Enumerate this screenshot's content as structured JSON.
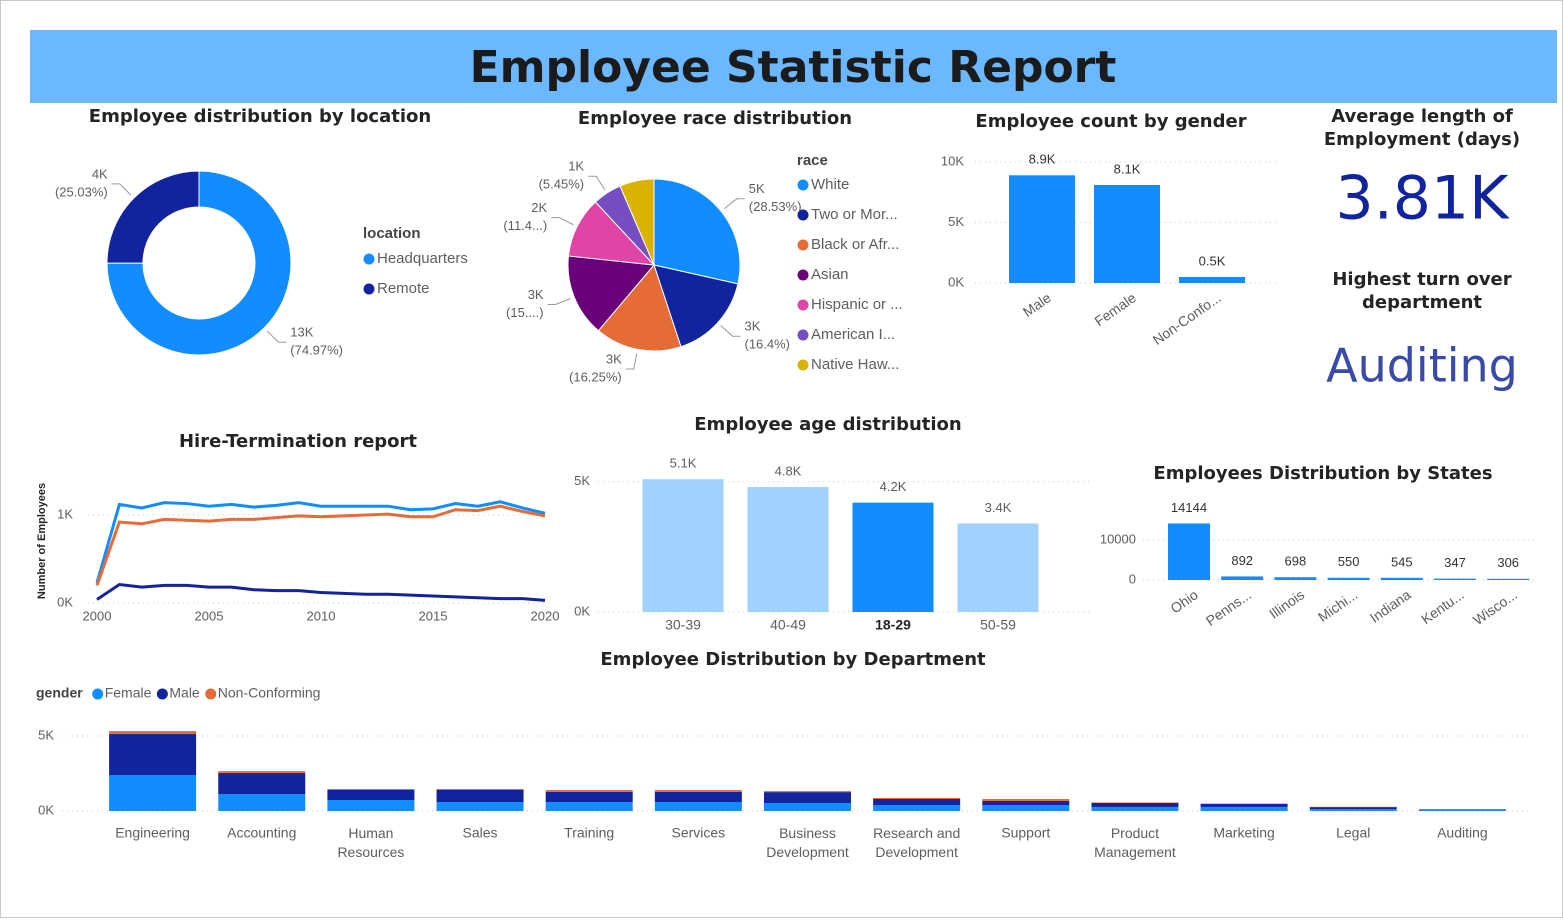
{
  "title": "Employee Statistic Report",
  "cards": [
    {
      "title": "Average length of Employment (days)",
      "value": "3.81K"
    },
    {
      "title": "Highest turn over department",
      "value": "Auditing"
    }
  ],
  "chart_data": [
    {
      "type": "donut",
      "title": "Employee distribution by location",
      "legend_title": "location",
      "categories": [
        "Headquarters",
        "Remote"
      ],
      "values": [
        74.97,
        25.03
      ],
      "count_labels": [
        "13K",
        "4K"
      ],
      "value_labels": [
        "(74.97%)",
        "(25.03%)"
      ],
      "colors": [
        "#118dff",
        "#12239e"
      ]
    },
    {
      "type": "pie",
      "title": "Employee race distribution",
      "legend_title": "race",
      "categories": [
        "White",
        "Two or Mor...",
        "Black or Afr...",
        "Asian",
        "Hispanic or ...",
        "American I...",
        "Native Haw..."
      ],
      "values": [
        28.53,
        16.4,
        16.25,
        15.5,
        11.4,
        5.45,
        6.47
      ],
      "count_labels": [
        "5K",
        "3K",
        "3K",
        "3K",
        "2K",
        "1K",
        null
      ],
      "value_labels": [
        "(28.53%)",
        "(16.4%)",
        "(16.25%)",
        "(15....)",
        "(11.4...)",
        "(5.45%)",
        null
      ],
      "colors": [
        "#118dff",
        "#12239e",
        "#e66c37",
        "#6b007b",
        "#e044a7",
        "#744ec2",
        "#d9b300"
      ]
    },
    {
      "type": "bar",
      "title": "Employee count by gender",
      "categories": [
        "Male",
        "Female",
        "Non-Confo..."
      ],
      "values": [
        8900,
        8100,
        500
      ],
      "value_labels": [
        "8.9K",
        "8.1K",
        "0.5K"
      ],
      "color": "#118dff",
      "ylim": [
        0,
        10000
      ],
      "yticks": [
        {
          "value": 0,
          "label": "0K"
        },
        {
          "value": 5000,
          "label": "5K"
        },
        {
          "value": 10000,
          "label": "10K"
        }
      ],
      "grid": true
    },
    {
      "type": "line",
      "title": "Hire-Termination report",
      "y_label": "Number of Employees",
      "x": [
        2000,
        2001,
        2002,
        2003,
        2004,
        2005,
        2006,
        2007,
        2008,
        2009,
        2010,
        2011,
        2012,
        2013,
        2014,
        2015,
        2016,
        2017,
        2018,
        2019,
        2020
      ],
      "series": [
        {
          "color": "#118dff",
          "values": [
            230,
            1120,
            1080,
            1140,
            1130,
            1100,
            1120,
            1090,
            1110,
            1140,
            1100,
            1100,
            1100,
            1100,
            1060,
            1070,
            1130,
            1100,
            1150,
            1080,
            1020
          ]
        },
        {
          "color": "#e66c37",
          "values": [
            200,
            920,
            900,
            950,
            940,
            930,
            950,
            950,
            970,
            990,
            980,
            990,
            1000,
            1010,
            980,
            980,
            1060,
            1050,
            1100,
            1040,
            990
          ]
        },
        {
          "color": "#12239e",
          "values": [
            40,
            210,
            180,
            200,
            200,
            180,
            180,
            150,
            140,
            140,
            120,
            110,
            100,
            100,
            90,
            80,
            70,
            60,
            50,
            50,
            30
          ]
        }
      ],
      "xlim": [
        2000,
        2020
      ],
      "xticks": [
        2000,
        2005,
        2010,
        2015,
        2020
      ],
      "ylim": [
        0,
        1500
      ],
      "yticks": [
        {
          "value": 0,
          "label": "0K"
        },
        {
          "value": 1000,
          "label": "1K"
        }
      ],
      "grid": true
    },
    {
      "type": "bar",
      "title": "Employee age distribution",
      "categories": [
        "30-39",
        "40-49",
        "18-29",
        "50-59"
      ],
      "values": [
        5100,
        4800,
        4200,
        3400
      ],
      "value_labels": [
        "5.1K",
        "4.8K",
        "4.2K",
        "3.4K"
      ],
      "colors": [
        "#a0d1ff",
        "#a0d1ff",
        "#118dff",
        "#a0d1ff"
      ],
      "label_weights": [
        "normal",
        "normal",
        "bold",
        "normal"
      ],
      "ylim": [
        0,
        5300
      ],
      "yticks": [
        {
          "value": 0,
          "label": "0K"
        },
        {
          "value": 5000,
          "label": "5K"
        }
      ],
      "grid": true
    },
    {
      "type": "bar",
      "title": "Employees Distribution by States",
      "categories": [
        "Ohio",
        "Penns...",
        "Illinois",
        "Michi...",
        "Indiana",
        "Kentu...",
        "Wisco..."
      ],
      "values": [
        14144,
        892,
        698,
        550,
        545,
        347,
        306
      ],
      "color": "#118dff",
      "ylim": [
        0,
        15000
      ],
      "yticks": [
        0,
        10000
      ],
      "grid": true
    },
    {
      "type": "bar",
      "stacked": true,
      "title": "Employee Distribution by Department",
      "legend_title": "gender",
      "categories": [
        "Engineering",
        "Accounting",
        "Human Resources",
        "Sales",
        "Training",
        "Services",
        "Business Development",
        "Research and Development",
        "Support",
        "Product Management",
        "Marketing",
        "Legal",
        "Auditing"
      ],
      "series": [
        {
          "name": "Female",
          "color": "#118dff",
          "values": [
            2400,
            1130,
            730,
            600,
            600,
            600,
            530,
            400,
            400,
            270,
            270,
            130,
            50
          ]
        },
        {
          "name": "Male",
          "color": "#12239e",
          "values": [
            2730,
            1400,
            670,
            800,
            670,
            670,
            730,
            400,
            270,
            270,
            200,
            130,
            50
          ]
        },
        {
          "name": "Non-Conforming",
          "color": "#e66c37",
          "values": [
            200,
            130,
            70,
            70,
            130,
            130,
            70,
            70,
            130,
            30,
            30,
            20,
            10
          ]
        }
      ],
      "ylim": [
        0,
        5600
      ],
      "yticks": [
        {
          "value": 0,
          "label": "0K"
        },
        {
          "value": 5000,
          "label": "5K"
        }
      ],
      "grid": true
    }
  ]
}
